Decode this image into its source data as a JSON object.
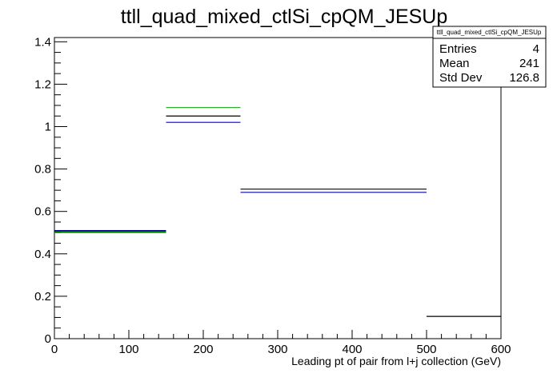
{
  "chart_data": {
    "type": "step",
    "title": "ttll_quad_mixed_ctlSi_cpQM_JESUp",
    "xlabel": "Leading pt of pair from l+j collection (GeV)",
    "ylabel": "",
    "xlim": [
      0,
      600
    ],
    "ylim": [
      0,
      1.42
    ],
    "x_ticks": [
      "0",
      "100",
      "200",
      "300",
      "400",
      "500",
      "600"
    ],
    "y_ticks": [
      "0",
      "0.2",
      "0.4",
      "0.6",
      "0.8",
      "1",
      "1.2",
      "1.4"
    ],
    "bin_edges": [
      0,
      150,
      250,
      500,
      600
    ],
    "series": [
      {
        "color": "#000000",
        "values": [
          0.505,
          1.05,
          0.705,
          0.105
        ]
      },
      {
        "color": "#00cc00",
        "values": [
          0.5,
          1.09,
          null,
          null
        ]
      },
      {
        "color": "#0000cc",
        "values": [
          0.51,
          1.02,
          0.69,
          null
        ]
      }
    ],
    "stats": {
      "name": "ttll_quad_mixed_ctlSi_cpQM_JESUp",
      "rows": [
        {
          "label": "Entries",
          "value": "4"
        },
        {
          "label": "Mean",
          "value": "241"
        },
        {
          "label": "Std Dev",
          "value": "126.8"
        }
      ]
    },
    "grid": false
  }
}
